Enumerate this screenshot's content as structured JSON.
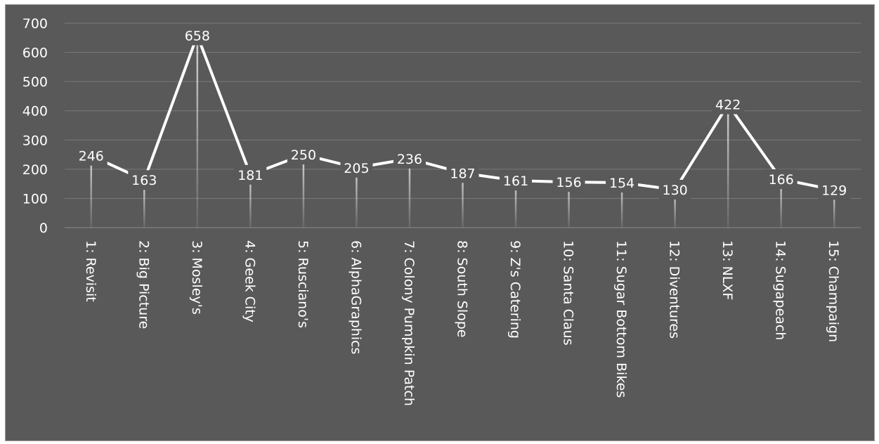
{
  "chart_data": {
    "type": "line",
    "categories": [
      "1: Revisit",
      "2: Big Picture",
      "3: Mosley's",
      "4: Geek City",
      "5: Rusciano's",
      "6: AlphaGraphics",
      "7: Colony Pumpkin Patch",
      "8: South Slope",
      "9: Z's Catering",
      "10: Santa Claus",
      "11: Sugar Bottom Bikes",
      "12: Diventures",
      "13: NLXF",
      "14: Sugapeach",
      "15: Champaign"
    ],
    "values": [
      246,
      163,
      658,
      181,
      250,
      205,
      236,
      187,
      161,
      156,
      154,
      130,
      422,
      166,
      129
    ],
    "data_labels": [
      "246",
      "163",
      "658",
      "181",
      "250",
      "205",
      "236",
      "187",
      "161",
      "156",
      "154",
      "130",
      "422",
      "166",
      "129"
    ],
    "ylim": [
      0,
      700
    ],
    "yticks": [
      "0",
      "100",
      "200",
      "300",
      "400",
      "500",
      "600",
      "700"
    ],
    "grid": true,
    "legend": "none",
    "line_color": "#ffffff",
    "background": "#595959"
  }
}
